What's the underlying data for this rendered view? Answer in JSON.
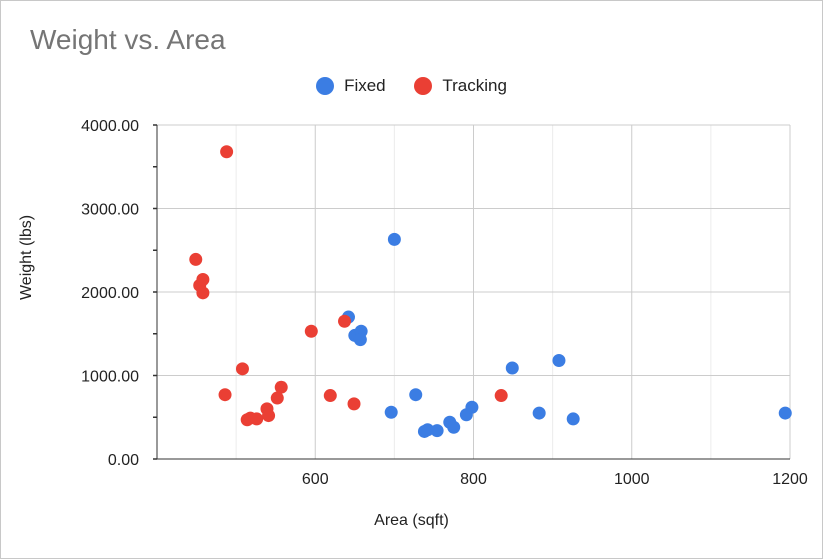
{
  "chart_data": {
    "type": "scatter",
    "title": "Weight vs. Area",
    "xlabel": "Area (sqft)",
    "ylabel": "Weight (lbs)",
    "xlim": [
      400,
      1200
    ],
    "ylim": [
      0,
      4000
    ],
    "x_ticks": [
      600,
      800,
      1000,
      1200
    ],
    "y_ticks": [
      "0.00",
      "1000.00",
      "2000.00",
      "3000.00",
      "4000.00"
    ],
    "grid": true,
    "legend": "top-center",
    "series": [
      {
        "name": "Fixed",
        "color": "#3b7de3",
        "points": [
          [
            642,
            1700
          ],
          [
            650,
            1480
          ],
          [
            658,
            1530
          ],
          [
            657,
            1430
          ],
          [
            700,
            2630
          ],
          [
            696,
            560
          ],
          [
            727,
            770
          ],
          [
            738,
            330
          ],
          [
            742,
            350
          ],
          [
            754,
            340
          ],
          [
            770,
            440
          ],
          [
            775,
            380
          ],
          [
            791,
            530
          ],
          [
            798,
            620
          ],
          [
            849,
            1090
          ],
          [
            883,
            550
          ],
          [
            908,
            1180
          ],
          [
            926,
            480
          ],
          [
            1194,
            550
          ]
        ]
      },
      {
        "name": "Tracking",
        "color": "#ea3f34",
        "points": [
          [
            449,
            2390
          ],
          [
            454,
            2080
          ],
          [
            458,
            2150
          ],
          [
            458,
            1990
          ],
          [
            488,
            3680
          ],
          [
            486,
            770
          ],
          [
            508,
            1080
          ],
          [
            514,
            470
          ],
          [
            518,
            490
          ],
          [
            526,
            480
          ],
          [
            539,
            600
          ],
          [
            541,
            520
          ],
          [
            552,
            730
          ],
          [
            557,
            860
          ],
          [
            595,
            1530
          ],
          [
            619,
            760
          ],
          [
            637,
            1650
          ],
          [
            649,
            660
          ],
          [
            835,
            760
          ]
        ]
      }
    ]
  }
}
